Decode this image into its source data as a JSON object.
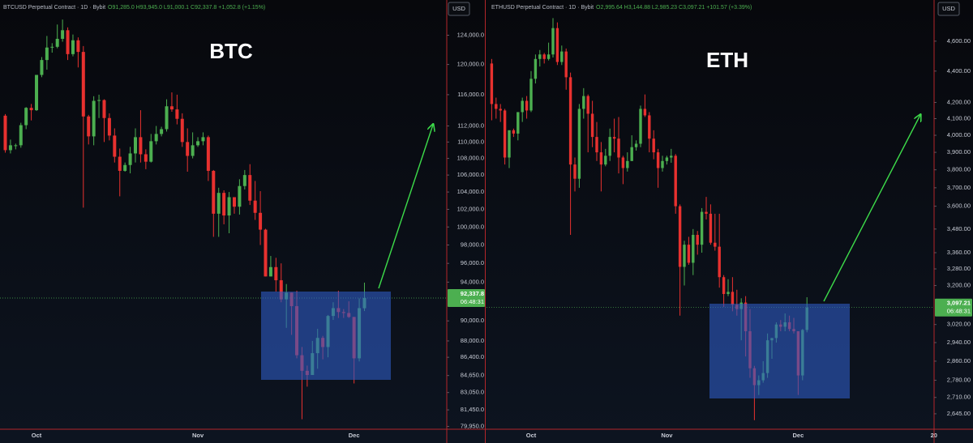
{
  "chart_data": [
    {
      "type": "candlestick",
      "title": "BTC",
      "symbol": "BTCUSD Perpetual Contract · 1D · Bybit",
      "ohlc_header": "O91,285.0 H93,945.0 L91,000.1 C92,337.8 +1,052.8 (+1.15%)",
      "currency": "USD",
      "up_color": "#4caf50",
      "down_color": "#e8312f",
      "log_scale": true,
      "grid": false,
      "ylim": [
        79700,
        129000
      ],
      "yticks": [
        {
          "value": 124000,
          "label": "124,000.0"
        },
        {
          "value": 120000,
          "label": "120,000.0"
        },
        {
          "value": 116000,
          "label": "116,000.0"
        },
        {
          "value": 112000,
          "label": "112,000.0"
        },
        {
          "value": 110000,
          "label": "110,000.0"
        },
        {
          "value": 108000,
          "label": "108,000.0"
        },
        {
          "value": 106000,
          "label": "106,000.0"
        },
        {
          "value": 104000,
          "label": "104,000.0"
        },
        {
          "value": 102000,
          "label": "102,000.0"
        },
        {
          "value": 100000,
          "label": "100,000.0"
        },
        {
          "value": 98000,
          "label": "98,000.0"
        },
        {
          "value": 96000,
          "label": "96,000.0"
        },
        {
          "value": 94000,
          "label": "94,000.0"
        },
        {
          "value": 90000,
          "label": "90,000.0"
        },
        {
          "value": 88000,
          "label": "88,000.0"
        },
        {
          "value": 86400,
          "label": "86,400.0"
        },
        {
          "value": 84650,
          "label": "84,650.0"
        },
        {
          "value": 83050,
          "label": "83,050.0"
        },
        {
          "value": 81450,
          "label": "81,450.0"
        },
        {
          "value": 79950,
          "label": "79,950.0"
        }
      ],
      "last_price": {
        "value": 92337.8,
        "label": "92,337.8"
      },
      "countdown": "06:48:31",
      "categories": [
        null,
        null,
        null,
        null,
        null,
        null,
        "Oct",
        null,
        null,
        null,
        null,
        null,
        null,
        null,
        null,
        null,
        null,
        null,
        null,
        null,
        null,
        null,
        null,
        null,
        null,
        null,
        null,
        null,
        null,
        null,
        null,
        null,
        null,
        null,
        null,
        null,
        null,
        "Nov",
        null,
        null,
        null,
        null,
        null,
        null,
        null,
        null,
        null,
        null,
        null,
        null,
        null,
        null,
        null,
        null,
        null,
        null,
        null,
        null,
        null,
        null,
        null,
        null,
        null,
        null,
        null,
        null,
        null,
        "Dec",
        null,
        null
      ],
      "ohlc": [
        [
          113300,
          113500,
          108700,
          109000
        ],
        [
          109000,
          110300,
          108600,
          109600
        ],
        [
          109600,
          109800,
          109100,
          109600
        ],
        [
          109600,
          112400,
          109300,
          112100
        ],
        [
          112100,
          114400,
          111600,
          114300
        ],
        [
          114300,
          114800,
          112700,
          114000
        ],
        [
          114000,
          118600,
          113900,
          118600
        ],
        [
          118600,
          121000,
          118300,
          120600
        ],
        [
          120600,
          123900,
          119300,
          122300
        ],
        [
          122300,
          122900,
          121600,
          122400
        ],
        [
          122400,
          125500,
          122200,
          123500
        ],
        [
          123500,
          126200,
          123100,
          124700
        ],
        [
          124700,
          125100,
          120600,
          121400
        ],
        [
          121400,
          124100,
          121100,
          123300
        ],
        [
          123300,
          123700,
          119600,
          121700
        ],
        [
          121700,
          122500,
          102200,
          113200
        ],
        [
          113200,
          113400,
          109700,
          110700
        ],
        [
          110700,
          115800,
          109600,
          115200
        ],
        [
          115200,
          116000,
          113000,
          115300
        ],
        [
          115300,
          115400,
          110000,
          113000
        ],
        [
          113000,
          113600,
          110200,
          110800
        ],
        [
          110800,
          111700,
          107500,
          108200
        ],
        [
          108200,
          109200,
          103500,
          106500
        ],
        [
          106500,
          107500,
          106400,
          107200
        ],
        [
          107200,
          109400,
          106200,
          108600
        ],
        [
          108600,
          111700,
          107500,
          110600
        ],
        [
          110600,
          114000,
          107500,
          108500
        ],
        [
          108500,
          109100,
          106700,
          107600
        ],
        [
          107600,
          111000,
          107500,
          110100
        ],
        [
          110100,
          112000,
          109700,
          111000
        ],
        [
          111000,
          111900,
          110700,
          111600
        ],
        [
          111600,
          115400,
          111300,
          114500
        ],
        [
          114500,
          116300,
          113800,
          114100
        ],
        [
          114100,
          116000,
          112200,
          112900
        ],
        [
          112900,
          113600,
          109400,
          110000
        ],
        [
          110000,
          111700,
          106400,
          108300
        ],
        [
          108300,
          111200,
          108000,
          109600
        ],
        [
          109600,
          110600,
          109400,
          110100
        ],
        [
          110100,
          111200,
          109600,
          110600
        ],
        [
          110600,
          110800,
          105300,
          106500
        ],
        [
          106500,
          106600,
          98900,
          101500
        ],
        [
          101500,
          104500,
          98900,
          103900
        ],
        [
          103900,
          104200,
          100300,
          101300
        ],
        [
          101300,
          104000,
          99300,
          103400
        ],
        [
          103400,
          103400,
          101500,
          102300
        ],
        [
          102300,
          105500,
          101400,
          104700
        ],
        [
          104700,
          106600,
          104300,
          106000
        ],
        [
          106000,
          107300,
          102500,
          103000
        ],
        [
          103000,
          105300,
          100800,
          101600
        ],
        [
          101600,
          104100,
          98000,
          99700
        ],
        [
          99700,
          99800,
          94600,
          94600
        ],
        [
          94600,
          96800,
          94600,
          95600
        ],
        [
          95600,
          96600,
          93000,
          94200
        ],
        [
          94200,
          96000,
          91900,
          92200
        ],
        [
          92200,
          93800,
          89300,
          92900
        ],
        [
          92900,
          92900,
          88600,
          91500
        ],
        [
          91500,
          93100,
          86300,
          86600
        ],
        [
          86600,
          87400,
          80600,
          85100
        ],
        [
          85100,
          85600,
          83600,
          84700
        ],
        [
          84700,
          88000,
          84700,
          86800
        ],
        [
          86800,
          89200,
          85300,
          88300
        ],
        [
          88300,
          88500,
          86200,
          87400
        ],
        [
          87400,
          90600,
          86400,
          90500
        ],
        [
          90500,
          91900,
          90100,
          91300
        ],
        [
          91300,
          93100,
          90300,
          90900
        ],
        [
          90900,
          91200,
          90300,
          90800
        ],
        [
          90800,
          92000,
          90300,
          90400
        ],
        [
          90400,
          90400,
          83900,
          86300
        ],
        [
          86300,
          92300,
          86000,
          91300
        ],
        [
          91285,
          93945,
          91000.1,
          92337.8
        ]
      ]
    },
    {
      "type": "candlestick",
      "title": "ETH",
      "symbol": "ETHUSD Perpetual Contract · 1D · Bybit",
      "ohlc_header": "O2,995.64 H3,144.88 L2,985.23 C3,097.21 +101.57 (+3.39%)",
      "currency": "USD",
      "up_color": "#4caf50",
      "down_color": "#e8312f",
      "log_scale": true,
      "grid": false,
      "ylim": [
        2585,
        4890
      ],
      "yticks": [
        {
          "value": 4600,
          "label": "4,600.00"
        },
        {
          "value": 4400,
          "label": "4,400.00"
        },
        {
          "value": 4200,
          "label": "4,200.00"
        },
        {
          "value": 4100,
          "label": "4,100.00"
        },
        {
          "value": 4000,
          "label": "4,000.00"
        },
        {
          "value": 3900,
          "label": "3,900.00"
        },
        {
          "value": 3800,
          "label": "3,800.00"
        },
        {
          "value": 3700,
          "label": "3,700.00"
        },
        {
          "value": 3600,
          "label": "3,600.00"
        },
        {
          "value": 3480,
          "label": "3,480.00"
        },
        {
          "value": 3360,
          "label": "3,360.00"
        },
        {
          "value": 3280,
          "label": "3,280.00"
        },
        {
          "value": 3200,
          "label": "3,200.00"
        },
        {
          "value": 3020,
          "label": "3,020.00"
        },
        {
          "value": 2940,
          "label": "2,940.00"
        },
        {
          "value": 2860,
          "label": "2,860.00"
        },
        {
          "value": 2780,
          "label": "2,780.00"
        },
        {
          "value": 2710,
          "label": "2,710.00"
        },
        {
          "value": 2645,
          "label": "2,645.00"
        }
      ],
      "last_price": {
        "value": 3097.21,
        "label": "3,097.21"
      },
      "countdown": "06:48:31",
      "categories": [
        null,
        null,
        null,
        null,
        null,
        null,
        null,
        null,
        null,
        "Oct",
        null,
        null,
        null,
        null,
        null,
        null,
        null,
        null,
        null,
        null,
        null,
        null,
        null,
        null,
        null,
        null,
        null,
        null,
        null,
        null,
        null,
        null,
        null,
        null,
        null,
        null,
        null,
        null,
        null,
        null,
        "Nov",
        null,
        null,
        null,
        null,
        null,
        null,
        null,
        null,
        null,
        null,
        null,
        null,
        null,
        null,
        null,
        null,
        null,
        null,
        null,
        null,
        null,
        null,
        null,
        null,
        null,
        null,
        null,
        null,
        null,
        "Dec",
        null,
        null,
        null,
        null,
        null,
        null,
        null,
        null,
        null,
        null,
        null,
        null,
        null,
        null,
        null,
        null,
        null,
        null,
        null,
        null,
        null,
        null,
        null,
        null,
        null,
        null,
        null,
        null,
        null,
        null,
        "20"
      ],
      "ohlc": [
        [
          4450,
          4480,
          4090,
          4190
        ],
        [
          4190,
          4230,
          4100,
          4160
        ],
        [
          4160,
          4190,
          4080,
          4150
        ],
        [
          4150,
          4160,
          3830,
          3870
        ],
        [
          3870,
          4030,
          3810,
          4030
        ],
        [
          4030,
          4040,
          3990,
          4010
        ],
        [
          4010,
          4140,
          3970,
          4140
        ],
        [
          4140,
          4230,
          4080,
          4210
        ],
        [
          4210,
          4240,
          4100,
          4150
        ],
        [
          4150,
          4400,
          4140,
          4350
        ],
        [
          4350,
          4510,
          4320,
          4480
        ],
        [
          4480,
          4540,
          4430,
          4510
        ],
        [
          4510,
          4520,
          4450,
          4480
        ],
        [
          4480,
          4590,
          4470,
          4510
        ],
        [
          4510,
          4760,
          4490,
          4690
        ],
        [
          4690,
          4730,
          4440,
          4460
        ],
        [
          4460,
          4570,
          4440,
          4530
        ],
        [
          4530,
          4550,
          4280,
          4360
        ],
        [
          4360,
          4390,
          3450,
          3830
        ],
        [
          3830,
          3870,
          3680,
          3750
        ],
        [
          3750,
          4190,
          3700,
          4160
        ],
        [
          4160,
          4290,
          4100,
          4240
        ],
        [
          4240,
          4250,
          3900,
          4130
        ],
        [
          4130,
          4210,
          3930,
          3990
        ],
        [
          3990,
          4080,
          3850,
          3900
        ],
        [
          3900,
          3960,
          3680,
          3830
        ],
        [
          3830,
          3920,
          3820,
          3880
        ],
        [
          3880,
          4040,
          3850,
          3990
        ],
        [
          3990,
          4100,
          3900,
          3980
        ],
        [
          3980,
          4110,
          3780,
          3870
        ],
        [
          3870,
          3880,
          3720,
          3810
        ],
        [
          3810,
          3900,
          3790,
          3850
        ],
        [
          3850,
          4000,
          3850,
          3930
        ],
        [
          3930,
          3970,
          3910,
          3950
        ],
        [
          3950,
          4180,
          3930,
          4160
        ],
        [
          4160,
          4250,
          4110,
          4120
        ],
        [
          4120,
          4140,
          3900,
          3980
        ],
        [
          3980,
          4030,
          3860,
          3900
        ],
        [
          3900,
          3920,
          3700,
          3810
        ],
        [
          3810,
          3880,
          3790,
          3850
        ],
        [
          3850,
          3880,
          3830,
          3870
        ],
        [
          3870,
          3920,
          3840,
          3880
        ],
        [
          3880,
          3890,
          3560,
          3600
        ],
        [
          3600,
          3610,
          3060,
          3290
        ],
        [
          3290,
          3420,
          3200,
          3400
        ],
        [
          3400,
          3440,
          3300,
          3310
        ],
        [
          3310,
          3480,
          3250,
          3450
        ],
        [
          3450,
          3470,
          3350,
          3400
        ],
        [
          3400,
          3590,
          3360,
          3570
        ],
        [
          3570,
          3650,
          3530,
          3560
        ],
        [
          3560,
          3610,
          3400,
          3410
        ],
        [
          3410,
          3560,
          3370,
          3390
        ],
        [
          3390,
          3560,
          3190,
          3240
        ],
        [
          3240,
          3250,
          3100,
          3160
        ],
        [
          3160,
          3230,
          3150,
          3170
        ],
        [
          3170,
          3240,
          3080,
          3110
        ],
        [
          3110,
          3180,
          3060,
          3090
        ],
        [
          3090,
          3140,
          2950,
          3120
        ],
        [
          3120,
          3150,
          2880,
          2990
        ],
        [
          2990,
          3090,
          2790,
          2830
        ],
        [
          2830,
          2840,
          2620,
          2760
        ],
        [
          2760,
          2800,
          2720,
          2780
        ],
        [
          2780,
          2860,
          2770,
          2810
        ],
        [
          2810,
          2980,
          2790,
          2950
        ],
        [
          2950,
          2960,
          2870,
          2960
        ],
        [
          2960,
          3030,
          2940,
          3020
        ],
        [
          3020,
          3040,
          2990,
          3010
        ],
        [
          3010,
          3070,
          2990,
          3030
        ],
        [
          3030,
          3060,
          2990,
          3000
        ],
        [
          3000,
          3050,
          2980,
          2990
        ],
        [
          2990,
          2990,
          2720,
          2800
        ],
        [
          2800,
          3000,
          2780,
          2995.64
        ],
        [
          2995.64,
          3144.88,
          2985.23,
          3097.21
        ],
        null,
        null,
        null,
        null,
        null,
        null,
        null,
        null,
        null,
        null,
        null,
        null,
        null,
        null,
        null,
        null,
        null,
        null,
        null,
        null,
        null,
        null,
        null,
        null,
        null,
        null,
        null,
        null,
        null
      ]
    }
  ]
}
